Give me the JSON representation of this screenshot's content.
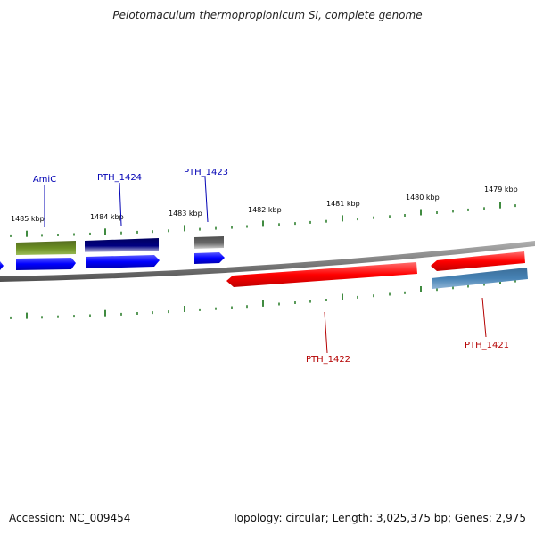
{
  "header": {
    "title": "Pelotomaculum thermopropionicum SI, complete genome"
  },
  "footer": {
    "accession": "Accession: NC_009454",
    "topology": "Topology: circular; Length: 3,025,375 bp; Genes: 2,975"
  },
  "ruler": {
    "labels": [
      "1485 kbp",
      "1484 kbp",
      "1483 kbp",
      "1482 kbp",
      "1481 kbp",
      "1480 kbp",
      "1479 kbp"
    ]
  },
  "genes_top": [
    {
      "label": "AmiC",
      "color": "#6b8e23"
    },
    {
      "label": "PTH_1424",
      "color": "#000080"
    },
    {
      "label": "PTH_1423",
      "color": "#696969"
    }
  ],
  "genes_bottom": [
    {
      "label": "PTH_1422",
      "color": "#ff0000"
    },
    {
      "label": "PTH_1421",
      "color": "#4682b4"
    }
  ],
  "colors": {
    "backbone": "#808080",
    "tick": "#006400",
    "forward": "#0000ff",
    "reverse": "#ff0000",
    "label_top": "#0000b4",
    "label_bottom": "#b40000"
  }
}
